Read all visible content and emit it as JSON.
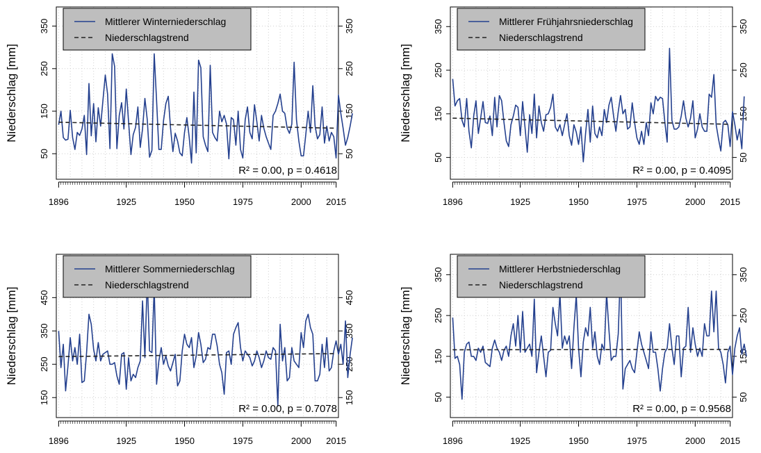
{
  "chart_data": [
    {
      "type": "line",
      "ylabel": "Niederschlag [mm]",
      "ylim": [
        -10,
        395
      ],
      "yticks": [
        50,
        150,
        250,
        350
      ],
      "xlim": [
        1895,
        2016
      ],
      "xticks": [
        1896,
        1925,
        1950,
        1975,
        2000,
        2015
      ],
      "legend_position": "top-left",
      "grid": true,
      "series": [
        {
          "name": "Mittlerer Winterniederschlag",
          "style": "solid",
          "color": "#24408e",
          "x_start": 1896,
          "values": [
            118,
            150,
            88,
            82,
            84,
            152,
            88,
            60,
            100,
            93,
            108,
            140,
            48,
            215,
            92,
            168,
            78,
            158,
            115,
            175,
            235,
            190,
            62,
            285,
            255,
            62,
            140,
            170,
            108,
            202,
            125,
            48,
            95,
            112,
            160,
            65,
            108,
            180,
            130,
            42,
            58,
            285,
            175,
            60,
            60,
            128,
            168,
            185,
            110,
            55,
            98,
            80,
            52,
            45,
            100,
            135,
            88,
            28,
            195,
            52,
            270,
            252,
            90,
            70,
            55,
            258,
            100,
            88,
            80,
            150,
            125,
            140,
            120,
            38,
            135,
            130,
            70,
            150,
            60,
            40,
            130,
            160,
            100,
            85,
            165,
            125,
            80,
            140,
            110,
            90,
            75,
            60,
            140,
            150,
            168,
            190,
            150,
            145,
            110,
            98,
            120,
            265,
            130,
            80,
            45,
            45,
            95,
            150,
            100,
            210,
            115,
            85,
            95,
            160,
            75,
            115,
            80,
            100,
            90,
            40,
            188,
            145,
            110,
            70,
            88,
            115,
            145
          ]
        },
        {
          "name": "Niederschlagstrend",
          "style": "dashed",
          "color": "#222222",
          "x": [
            1896,
            2015
          ],
          "y": [
            124,
            110
          ]
        }
      ],
      "annotation": "R² = 0.00, p = 0.4618"
    },
    {
      "type": "line",
      "ylabel": "Niederschlag [mm]",
      "ylim": [
        0,
        395
      ],
      "yticks": [
        50,
        150,
        250,
        350
      ],
      "xlim": [
        1895,
        2016
      ],
      "xticks": [
        1896,
        1925,
        1950,
        1975,
        2000,
        2015
      ],
      "legend_position": "top-left",
      "grid": true,
      "series": [
        {
          "name": "Mittlerer Frühjahrsniederschlag",
          "style": "solid",
          "color": "#24408e",
          "x_start": 1896,
          "values": [
            230,
            168,
            180,
            185,
            135,
            120,
            185,
            110,
            72,
            145,
            180,
            105,
            140,
            178,
            130,
            128,
            145,
            100,
            188,
            120,
            192,
            180,
            130,
            88,
            75,
            125,
            145,
            170,
            165,
            100,
            178,
            120,
            62,
            148,
            105,
            195,
            95,
            168,
            130,
            110,
            148,
            150,
            165,
            195,
            120,
            110,
            125,
            100,
            125,
            150,
            100,
            78,
            125,
            108,
            80,
            120,
            40,
            105,
            160,
            85,
            168,
            105,
            95,
            120,
            100,
            160,
            130,
            170,
            188,
            145,
            110,
            155,
            192,
            150,
            160,
            115,
            120,
            175,
            130,
            95,
            80,
            110,
            80,
            130,
            100,
            175,
            150,
            190,
            180,
            188,
            185,
            130,
            85,
            300,
            135,
            115,
            115,
            120,
            145,
            180,
            140,
            120,
            140,
            180,
            95,
            115,
            150,
            120,
            110,
            110,
            195,
            188,
            240,
            125,
            92,
            65,
            130,
            135,
            125,
            75,
            155,
            125,
            90,
            115,
            70,
            190
          ]
        },
        {
          "name": "Niederschlagstrend",
          "style": "dashed",
          "color": "#222222",
          "x": [
            1896,
            2015
          ],
          "y": [
            140,
            126
          ]
        }
      ],
      "annotation": "R² = 0.00, p = 0.4095"
    },
    {
      "type": "line",
      "ylabel": "Niederschlag [mm]",
      "ylim": [
        90,
        580
      ],
      "yticks": [
        150,
        250,
        350,
        450
      ],
      "xlim": [
        1895,
        2016
      ],
      "xticks": [
        1896,
        1925,
        1950,
        1975,
        2000,
        2015
      ],
      "legend_position": "top-left",
      "grid": true,
      "series": [
        {
          "name": "Mittlerer Sommerniederschlag",
          "style": "solid",
          "color": "#24408e",
          "x_start": 1896,
          "values": [
            350,
            240,
            310,
            170,
            245,
            330,
            260,
            300,
            250,
            340,
            195,
            200,
            285,
            400,
            370,
            295,
            260,
            315,
            260,
            280,
            285,
            290,
            250,
            250,
            255,
            215,
            190,
            280,
            285,
            175,
            270,
            200,
            220,
            210,
            240,
            260,
            440,
            270,
            510,
            290,
            285,
            480,
            190,
            260,
            300,
            250,
            275,
            245,
            230,
            255,
            280,
            185,
            200,
            290,
            340,
            310,
            300,
            330,
            240,
            275,
            345,
            310,
            255,
            265,
            300,
            295,
            340,
            340,
            305,
            250,
            225,
            160,
            285,
            290,
            250,
            340,
            360,
            375,
            300,
            260,
            290,
            280,
            270,
            245,
            260,
            290,
            270,
            240,
            260,
            290,
            270,
            265,
            300,
            290,
            125,
            370,
            260,
            300,
            200,
            210,
            300,
            260,
            250,
            240,
            345,
            300,
            380,
            400,
            360,
            340,
            200,
            200,
            220,
            310,
            240,
            330,
            230,
            240,
            290,
            320,
            280,
            310,
            250,
            380,
            210,
            280,
            330
          ]
        },
        {
          "name": "Niederschlagstrend",
          "style": "dashed",
          "color": "#222222",
          "x": [
            1896,
            2015
          ],
          "y": [
            273,
            282
          ]
        }
      ],
      "annotation": "R² = 0.00, p = 0.7078"
    },
    {
      "type": "line",
      "ylabel": "Niederschlag [mm]",
      "ylim": [
        0,
        400
      ],
      "yticks": [
        50,
        150,
        250,
        350
      ],
      "xlim": [
        1895,
        2016
      ],
      "xticks": [
        1896,
        1925,
        1950,
        1975,
        2000,
        2015
      ],
      "legend_position": "top-left",
      "grid": true,
      "series": [
        {
          "name": "Mittlerer Herbstniederschlag",
          "style": "solid",
          "color": "#24408e",
          "x_start": 1896,
          "values": [
            245,
            145,
            150,
            130,
            45,
            160,
            180,
            185,
            150,
            150,
            140,
            170,
            160,
            175,
            135,
            130,
            125,
            170,
            190,
            170,
            160,
            140,
            165,
            175,
            150,
            200,
            230,
            175,
            250,
            160,
            260,
            160,
            170,
            180,
            150,
            290,
            110,
            160,
            200,
            150,
            100,
            160,
            165,
            270,
            230,
            200,
            305,
            170,
            200,
            180,
            200,
            120,
            220,
            300,
            170,
            100,
            185,
            220,
            200,
            270,
            170,
            210,
            150,
            130,
            180,
            165,
            305,
            215,
            140,
            150,
            150,
            205,
            370,
            70,
            120,
            130,
            140,
            120,
            110,
            160,
            210,
            180,
            160,
            140,
            120,
            210,
            160,
            160,
            120,
            65,
            120,
            160,
            170,
            230,
            170,
            130,
            200,
            200,
            100,
            170,
            175,
            270,
            160,
            220,
            180,
            150,
            170,
            150,
            230,
            200,
            200,
            310,
            210,
            310,
            170,
            160,
            130,
            85,
            160,
            175,
            105,
            170,
            200,
            220,
            155,
            180,
            150
          ]
        },
        {
          "name": "Niederschlagstrend",
          "style": "dashed",
          "color": "#222222",
          "x": [
            1896,
            2015
          ],
          "y": [
            166,
            167
          ]
        }
      ],
      "annotation": "R² = 0.00, p = 0.9568"
    }
  ]
}
